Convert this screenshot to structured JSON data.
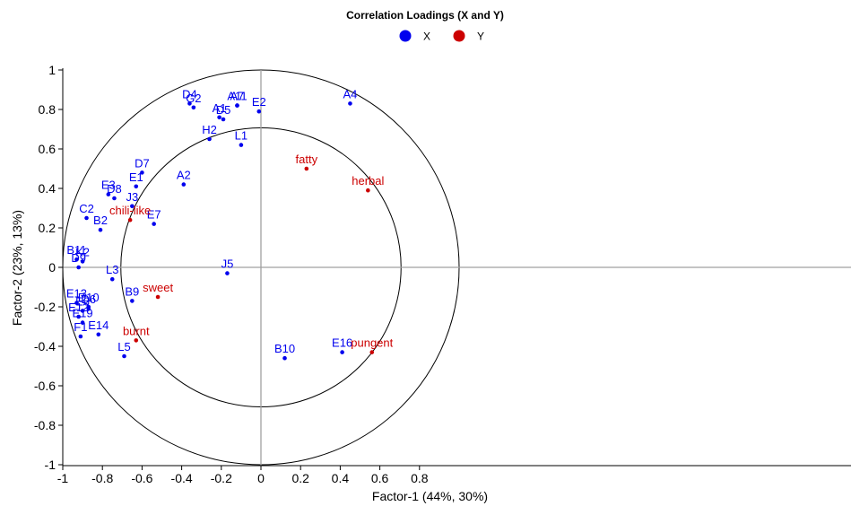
{
  "chart_data": {
    "type": "scatter",
    "title": "Correlation Loadings (X and Y)",
    "xlabel": "Factor-1 (44%, 30%)",
    "ylabel": "Factor-2 (23%, 13%)",
    "xlim": [
      -1,
      1
    ],
    "ylim": [
      -1,
      1
    ],
    "xticks": [
      -1,
      -0.8,
      -0.6,
      -0.4,
      -0.2,
      0,
      0.2,
      0.4,
      0.6,
      0.8
    ],
    "yticks": [
      1,
      0.8,
      0.6,
      0.4,
      0.2,
      0,
      -0.2,
      -0.4,
      -0.6,
      -0.8,
      -1
    ],
    "xtick_labels": [
      "-1",
      "-0.8",
      "-0.6",
      "-0.4",
      "-0.2",
      "0",
      "0.2",
      "0.4",
      "0.6",
      "0.8"
    ],
    "ytick_labels": [
      "1",
      "0.8",
      "0.6",
      "0.4",
      "0.2",
      "0",
      "-0.2",
      "-0.4",
      "-0.6",
      "-0.8",
      "-1"
    ],
    "ellipses": [
      {
        "rx": 1.0,
        "ry": 1.0
      },
      {
        "rx": 0.707,
        "ry": 0.707
      }
    ],
    "legend": {
      "placement": "top-center",
      "entries": [
        {
          "name": "X",
          "color": "#0000ee"
        },
        {
          "name": "Y",
          "color": "#cc0000"
        }
      ]
    },
    "series": [
      {
        "name": "X",
        "color": "#0000ee",
        "points": [
          {
            "label": "A4",
            "x": 0.45,
            "y": 0.83
          },
          {
            "label": "A7",
            "x": -0.12,
            "y": 0.82
          },
          {
            "label": "A11",
            "x": -0.12,
            "y": 0.82
          },
          {
            "label": "A1",
            "x": -0.21,
            "y": 0.76
          },
          {
            "label": "D5",
            "x": -0.19,
            "y": 0.75
          },
          {
            "label": "E2",
            "x": -0.01,
            "y": 0.79
          },
          {
            "label": "D4",
            "x": -0.36,
            "y": 0.83
          },
          {
            "label": "G2",
            "x": -0.34,
            "y": 0.81
          },
          {
            "label": "H2",
            "x": -0.26,
            "y": 0.65
          },
          {
            "label": "L1",
            "x": -0.1,
            "y": 0.62
          },
          {
            "label": "D7",
            "x": -0.6,
            "y": 0.48
          },
          {
            "label": "A2",
            "x": -0.39,
            "y": 0.42
          },
          {
            "label": "E1",
            "x": -0.63,
            "y": 0.41
          },
          {
            "label": "J3",
            "x": -0.65,
            "y": 0.31
          },
          {
            "label": "E3",
            "x": -0.77,
            "y": 0.37
          },
          {
            "label": "D8",
            "x": -0.74,
            "y": 0.35
          },
          {
            "label": "E7",
            "x": -0.54,
            "y": 0.22
          },
          {
            "label": "C2",
            "x": -0.88,
            "y": 0.25
          },
          {
            "label": "B2",
            "x": -0.81,
            "y": 0.19
          },
          {
            "label": "B11",
            "x": -0.93,
            "y": 0.04
          },
          {
            "label": "K2",
            "x": -0.9,
            "y": 0.03
          },
          {
            "label": "D9",
            "x": -0.92,
            "y": 0.0
          },
          {
            "label": "L3",
            "x": -0.75,
            "y": -0.06
          },
          {
            "label": "J5",
            "x": -0.17,
            "y": -0.03
          },
          {
            "label": "B9",
            "x": -0.65,
            "y": -0.17
          },
          {
            "label": "E13",
            "x": -0.93,
            "y": -0.18
          },
          {
            "label": "D10",
            "x": -0.87,
            "y": -0.2
          },
          {
            "label": "E6",
            "x": -0.9,
            "y": -0.22
          },
          {
            "label": "D6",
            "x": -0.87,
            "y": -0.21
          },
          {
            "label": "E12",
            "x": -0.92,
            "y": -0.25
          },
          {
            "label": "E19",
            "x": -0.9,
            "y": -0.28
          },
          {
            "label": "E14",
            "x": -0.82,
            "y": -0.34
          },
          {
            "label": "F1",
            "x": -0.91,
            "y": -0.35
          },
          {
            "label": "L5",
            "x": -0.69,
            "y": -0.45
          },
          {
            "label": "B10",
            "x": 0.12,
            "y": -0.46
          },
          {
            "label": "E16",
            "x": 0.41,
            "y": -0.43
          }
        ]
      },
      {
        "name": "Y",
        "color": "#cc0000",
        "points": [
          {
            "label": "fatty",
            "x": 0.23,
            "y": 0.5
          },
          {
            "label": "herbal",
            "x": 0.54,
            "y": 0.39
          },
          {
            "label": "chili-like",
            "x": -0.66,
            "y": 0.24
          },
          {
            "label": "sweet",
            "x": -0.52,
            "y": -0.15
          },
          {
            "label": "burnt",
            "x": -0.63,
            "y": -0.37
          },
          {
            "label": "pungent",
            "x": 0.56,
            "y": -0.43
          }
        ]
      }
    ]
  }
}
